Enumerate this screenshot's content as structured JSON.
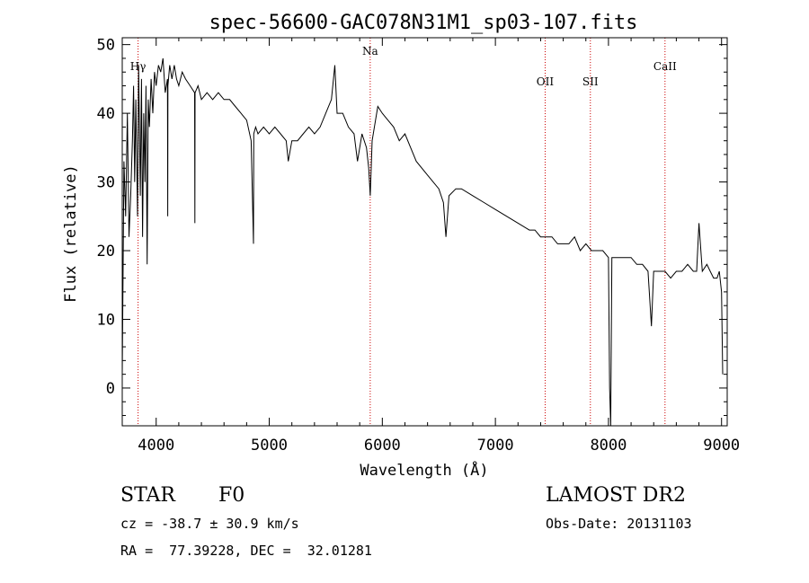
{
  "chart_data": {
    "type": "line",
    "title": "spec-56600-GAC078N31M1_sp03-107.fits",
    "xlabel": "Wavelength (Å)",
    "ylabel": "Flux (relative)",
    "xlim": [
      3700,
      9050
    ],
    "ylim": [
      -5.5,
      51
    ],
    "xticks": [
      4000,
      5000,
      6000,
      7000,
      8000,
      9000
    ],
    "yticks": [
      0,
      10,
      20,
      30,
      40,
      50
    ],
    "line_markers": [
      {
        "label": "Hγ",
        "x": 3840
      },
      {
        "label": "Na",
        "x": 5893
      },
      {
        "label": "OII",
        "x": 7440
      },
      {
        "label": "SII",
        "x": 7840
      },
      {
        "label": "CaII",
        "x": 8500
      }
    ],
    "series": [
      {
        "x": [
          3700,
          3715,
          3730,
          3745,
          3760,
          3775,
          3790,
          3800,
          3810,
          3820,
          3835,
          3845,
          3860,
          3870,
          3880,
          3890,
          3900,
          3910,
          3920,
          3930,
          3940,
          3955,
          3970,
          3985,
          4000,
          4020,
          4040,
          4060,
          4080,
          4100,
          4102,
          4104,
          4120,
          4140,
          4160,
          4180,
          4200,
          4230,
          4260,
          4300,
          4340,
          4342,
          4344,
          4370,
          4400,
          4450,
          4500,
          4550,
          4600,
          4650,
          4700,
          4750,
          4800,
          4840,
          4861,
          4863,
          4880,
          4900,
          4950,
          5000,
          5050,
          5100,
          5150,
          5168,
          5200,
          5250,
          5300,
          5350,
          5400,
          5450,
          5500,
          5550,
          5580,
          5600,
          5650,
          5700,
          5750,
          5780,
          5820,
          5860,
          5880,
          5893,
          5910,
          5930,
          5960,
          6000,
          6050,
          6100,
          6150,
          6200,
          6250,
          6300,
          6400,
          6500,
          6540,
          6563,
          6590,
          6650,
          6700,
          6800,
          6900,
          7000,
          7100,
          7200,
          7300,
          7350,
          7400,
          7450,
          7500,
          7550,
          7600,
          7650,
          7700,
          7750,
          7800,
          7850,
          7900,
          7950,
          8000,
          8010,
          8020,
          8030,
          8100,
          8150,
          8200,
          8250,
          8300,
          8350,
          8380,
          8400,
          8450,
          8500,
          8550,
          8600,
          8650,
          8700,
          8750,
          8780,
          8800,
          8830,
          8870,
          8900,
          8930,
          8960,
          8980,
          9000,
          9010
        ],
        "y": [
          2,
          33,
          25,
          40,
          22,
          28,
          36,
          44,
          30,
          42,
          25,
          47,
          28,
          45,
          22,
          40,
          30,
          44,
          18,
          42,
          38,
          45,
          40,
          46,
          44,
          47,
          46,
          48,
          43,
          45,
          25,
          44,
          47,
          45,
          47,
          45,
          44,
          46,
          45,
          44,
          43,
          24,
          43,
          44,
          42,
          43,
          42,
          43,
          42,
          42,
          41,
          40,
          39,
          36,
          21,
          37,
          38,
          37,
          38,
          37,
          38,
          37,
          36,
          33,
          36,
          36,
          37,
          38,
          37,
          38,
          40,
          42,
          47,
          40,
          40,
          38,
          37,
          33,
          37,
          35,
          32,
          28,
          36,
          38,
          41,
          40,
          39,
          38,
          36,
          37,
          35,
          33,
          31,
          29,
          27,
          22,
          28,
          29,
          29,
          28,
          27,
          26,
          25,
          24,
          23,
          23,
          22,
          22,
          22,
          21,
          21,
          21,
          22,
          20,
          21,
          20,
          20,
          20,
          19,
          0,
          -6,
          19,
          19,
          19,
          19,
          18,
          18,
          17,
          9,
          17,
          17,
          17,
          16,
          17,
          17,
          18,
          17,
          17,
          24,
          17,
          18,
          17,
          16,
          16,
          17,
          14,
          2
        ]
      }
    ]
  },
  "info": {
    "object_type": "STAR",
    "subclass": "F0",
    "survey": "LAMOST DR2",
    "cz": "cz = -38.7 ± 30.9 km/s",
    "obs_date": "Obs-Date: 20131103",
    "coords": "RA =  77.39228, DEC =  32.01281"
  }
}
